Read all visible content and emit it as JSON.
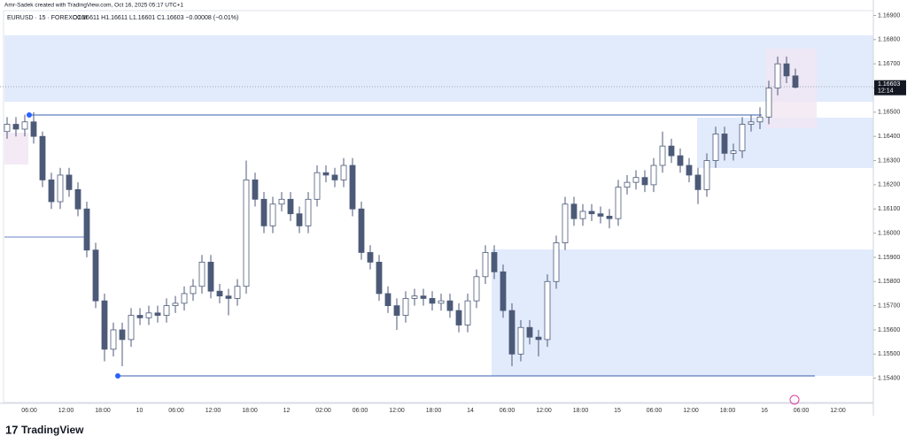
{
  "header": {
    "credit": "Amr-Sadek created with TradingView.com, Oct 16, 2025 05:17 UTC+1",
    "logo": "TradingView"
  },
  "chart_data": {
    "type": "candlestick",
    "symbol": "EURUSD · 15 · FOREXCOM",
    "ohlc_legend": "O1.16611 H1.16611 L1.16601 C1.16603 −0.00008 (−0.01%)",
    "last_price": {
      "value": 1.16603,
      "label": "1.16603"
    },
    "countdown": "12:14",
    "up_color": "#ffffff",
    "down_color": "#4c5a78",
    "wick_color": "#4c5a78",
    "ylim": [
      1.153,
      1.1692
    ],
    "yticks": [
      {
        "value": 1.169,
        "label": "1.16900"
      },
      {
        "value": 1.168,
        "label": "1.16800"
      },
      {
        "value": 1.167,
        "label": "1.16700"
      },
      {
        "value": 1.166,
        "label": "1.16600"
      },
      {
        "value": 1.165,
        "label": "1.16500"
      },
      {
        "value": 1.164,
        "label": "1.16400"
      },
      {
        "value": 1.163,
        "label": "1.16300"
      },
      {
        "value": 1.162,
        "label": "1.16200"
      },
      {
        "value": 1.161,
        "label": "1.16100"
      },
      {
        "value": 1.16,
        "label": "1.16000"
      },
      {
        "value": 1.159,
        "label": "1.15900"
      },
      {
        "value": 1.158,
        "label": "1.15800"
      },
      {
        "value": 1.157,
        "label": "1.15700"
      },
      {
        "value": 1.156,
        "label": "1.15600"
      },
      {
        "value": 1.155,
        "label": "1.15500"
      },
      {
        "value": 1.154,
        "label": "1.15400"
      }
    ],
    "xlabels": [
      "06:00",
      "12:00",
      "18:00",
      "10",
      "06:00",
      "12:00",
      "18:00",
      "12",
      "02:00",
      "06:00",
      "12:00",
      "18:00",
      "14",
      "06:00",
      "12:00",
      "18:00",
      "15",
      "06:00",
      "12:00",
      "18:00",
      "16",
      "06:00",
      "12:00"
    ],
    "candles": [
      [
        1.1642,
        1.1648,
        1.1639,
        1.1645
      ],
      [
        1.1645,
        1.1648,
        1.164,
        1.1643
      ],
      [
        1.1643,
        1.1649,
        1.164,
        1.1646
      ],
      [
        1.1646,
        1.165,
        1.1637,
        1.164
      ],
      [
        1.164,
        1.1642,
        1.1619,
        1.1622
      ],
      [
        1.1622,
        1.1625,
        1.161,
        1.1613
      ],
      [
        1.1613,
        1.1627,
        1.161,
        1.1624
      ],
      [
        1.1624,
        1.1627,
        1.1615,
        1.1618
      ],
      [
        1.1618,
        1.1621,
        1.1607,
        1.161
      ],
      [
        1.161,
        1.1613,
        1.159,
        1.1593
      ],
      [
        1.1593,
        1.1596,
        1.1569,
        1.1572
      ],
      [
        1.1572,
        1.1575,
        1.1547,
        1.1552
      ],
      [
        1.1552,
        1.1563,
        1.1549,
        1.156
      ],
      [
        1.156,
        1.1563,
        1.1545,
        1.1556
      ],
      [
        1.1556,
        1.1569,
        1.1553,
        1.1566
      ],
      [
        1.1566,
        1.1569,
        1.1562,
        1.1565
      ],
      [
        1.1565,
        1.157,
        1.1562,
        1.1567
      ],
      [
        1.1567,
        1.157,
        1.1563,
        1.1566
      ],
      [
        1.1566,
        1.1573,
        1.1563,
        1.157
      ],
      [
        1.157,
        1.1574,
        1.1567,
        1.1571
      ],
      [
        1.1571,
        1.1578,
        1.1568,
        1.1575
      ],
      [
        1.1575,
        1.1581,
        1.1572,
        1.1578
      ],
      [
        1.1578,
        1.1591,
        1.1575,
        1.1588
      ],
      [
        1.1588,
        1.1591,
        1.1573,
        1.1576
      ],
      [
        1.1576,
        1.1579,
        1.1571,
        1.1574
      ],
      [
        1.1574,
        1.1577,
        1.1566,
        1.1573
      ],
      [
        1.1573,
        1.1581,
        1.157,
        1.1578
      ],
      [
        1.1578,
        1.163,
        1.1575,
        1.1622
      ],
      [
        1.1622,
        1.1625,
        1.1611,
        1.1614
      ],
      [
        1.1614,
        1.1617,
        1.16,
        1.1603
      ],
      [
        1.1603,
        1.1615,
        1.16,
        1.1612
      ],
      [
        1.1612,
        1.1617,
        1.1609,
        1.1614
      ],
      [
        1.1614,
        1.1617,
        1.1605,
        1.1608
      ],
      [
        1.1608,
        1.1611,
        1.16,
        1.1603
      ],
      [
        1.1603,
        1.1617,
        1.16,
        1.1614
      ],
      [
        1.1614,
        1.1628,
        1.1611,
        1.1625
      ],
      [
        1.1625,
        1.1628,
        1.1621,
        1.1624
      ],
      [
        1.1624,
        1.1627,
        1.1619,
        1.1622
      ],
      [
        1.1622,
        1.1631,
        1.1619,
        1.1628
      ],
      [
        1.1628,
        1.1631,
        1.1607,
        1.161
      ],
      [
        1.161,
        1.1613,
        1.1589,
        1.1592
      ],
      [
        1.1592,
        1.1595,
        1.1585,
        1.1588
      ],
      [
        1.1588,
        1.1591,
        1.1572,
        1.1575
      ],
      [
        1.1575,
        1.1578,
        1.1567,
        1.157
      ],
      [
        1.157,
        1.1573,
        1.156,
        1.1566
      ],
      [
        1.1566,
        1.1576,
        1.1563,
        1.1573
      ],
      [
        1.1573,
        1.1577,
        1.157,
        1.1574
      ],
      [
        1.1574,
        1.1577,
        1.157,
        1.1573
      ],
      [
        1.1573,
        1.1576,
        1.1568,
        1.1571
      ],
      [
        1.1571,
        1.1575,
        1.1568,
        1.1572
      ],
      [
        1.1572,
        1.1575,
        1.1565,
        1.1568
      ],
      [
        1.1568,
        1.1571,
        1.1559,
        1.1562
      ],
      [
        1.1562,
        1.1575,
        1.1559,
        1.1572
      ],
      [
        1.1572,
        1.1585,
        1.1569,
        1.1582
      ],
      [
        1.1582,
        1.1595,
        1.1579,
        1.1592
      ],
      [
        1.1592,
        1.1595,
        1.1581,
        1.1584
      ],
      [
        1.1584,
        1.1587,
        1.1565,
        1.1568
      ],
      [
        1.1568,
        1.1571,
        1.1545,
        1.155
      ],
      [
        1.155,
        1.1564,
        1.1547,
        1.1561
      ],
      [
        1.1561,
        1.1564,
        1.1554,
        1.1557
      ],
      [
        1.1557,
        1.156,
        1.1549,
        1.1556
      ],
      [
        1.1556,
        1.1583,
        1.1553,
        1.158
      ],
      [
        1.158,
        1.1599,
        1.1577,
        1.1596
      ],
      [
        1.1596,
        1.1615,
        1.1593,
        1.1612
      ],
      [
        1.1612,
        1.1615,
        1.1603,
        1.1606
      ],
      [
        1.1606,
        1.1612,
        1.1603,
        1.1609
      ],
      [
        1.1609,
        1.1612,
        1.1605,
        1.1608
      ],
      [
        1.1608,
        1.1611,
        1.1604,
        1.1607
      ],
      [
        1.1607,
        1.161,
        1.1602,
        1.1606
      ],
      [
        1.1606,
        1.1622,
        1.1603,
        1.1619
      ],
      [
        1.1619,
        1.1624,
        1.1616,
        1.1621
      ],
      [
        1.1621,
        1.1626,
        1.1618,
        1.1623
      ],
      [
        1.1623,
        1.1626,
        1.1617,
        1.162
      ],
      [
        1.162,
        1.1631,
        1.1617,
        1.1628
      ],
      [
        1.1628,
        1.1642,
        1.1625,
        1.1636
      ],
      [
        1.1636,
        1.1639,
        1.1629,
        1.1632
      ],
      [
        1.1632,
        1.1635,
        1.1625,
        1.1628
      ],
      [
        1.1628,
        1.1631,
        1.1621,
        1.1624
      ],
      [
        1.1624,
        1.1627,
        1.1612,
        1.1618
      ],
      [
        1.1618,
        1.1633,
        1.1615,
        1.163
      ],
      [
        1.163,
        1.1644,
        1.1627,
        1.1641
      ],
      [
        1.1641,
        1.1644,
        1.163,
        1.1633
      ],
      [
        1.1633,
        1.1637,
        1.163,
        1.1634
      ],
      [
        1.1634,
        1.1648,
        1.1631,
        1.1645
      ],
      [
        1.1645,
        1.1649,
        1.1642,
        1.1646
      ],
      [
        1.1646,
        1.1652,
        1.1643,
        1.1648
      ],
      [
        1.1648,
        1.1663,
        1.1645,
        1.166
      ],
      [
        1.166,
        1.1673,
        1.1657,
        1.167
      ],
      [
        1.167,
        1.1673,
        1.1662,
        1.1665
      ],
      [
        1.1665,
        1.1668,
        1.16598,
        1.16603
      ]
    ]
  }
}
